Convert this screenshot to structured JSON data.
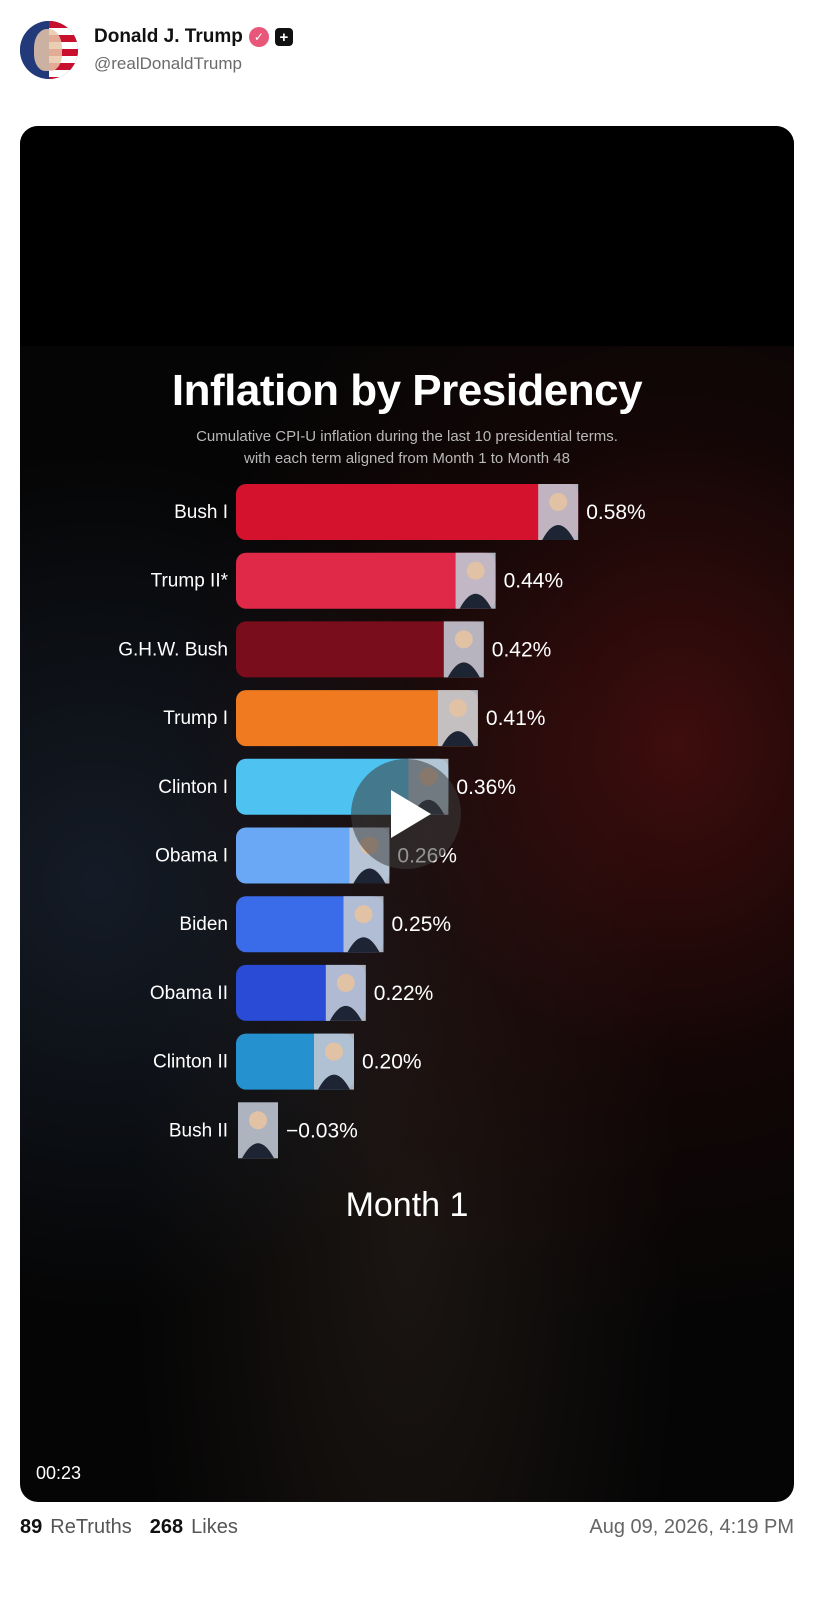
{
  "post": {
    "display_name": "Donald J. Trump",
    "handle": "@realDonaldTrump",
    "verified_icon": "verified-badge-icon",
    "plus_icon": "plus-icon",
    "retruths_count": "89",
    "retruths_label": "ReTruths",
    "likes_count": "268",
    "likes_label": "Likes",
    "timestamp": "Aug 09, 2026, 4:19 PM"
  },
  "video": {
    "duration": "00:23",
    "play_icon": "play-icon",
    "month_label": "Month 1"
  },
  "chart_data": {
    "type": "bar",
    "orientation": "horizontal",
    "title": "Inflation by Presidency",
    "subtitle_lines": [
      "Cumulative CPI-U inflation during the last 10 presidential terms.",
      "with each term aligned from Month 1 to Month 48"
    ],
    "categories": [
      "Bush I",
      "Trump II*",
      "G.H.W. Bush",
      "Trump I",
      "Clinton I",
      "Obama I",
      "Biden",
      "Obama II",
      "Clinton II",
      "Bush II"
    ],
    "values": [
      0.58,
      0.44,
      0.42,
      0.41,
      0.36,
      0.26,
      0.25,
      0.22,
      0.2,
      -0.03
    ],
    "value_labels": [
      "0.58%",
      "0.44%",
      "0.42%",
      "0.41%",
      "0.36%",
      "0.26%",
      "0.25%",
      "0.22%",
      "0.20%",
      "−0.03%"
    ],
    "colors": [
      "#d4122e",
      "#e02848",
      "#7a0d1c",
      "#f07a1f",
      "#4ec2f0",
      "#6aa8f5",
      "#3a6be8",
      "#2a4bd6",
      "#2592cf",
      "#2592cf"
    ],
    "unit": "%"
  }
}
